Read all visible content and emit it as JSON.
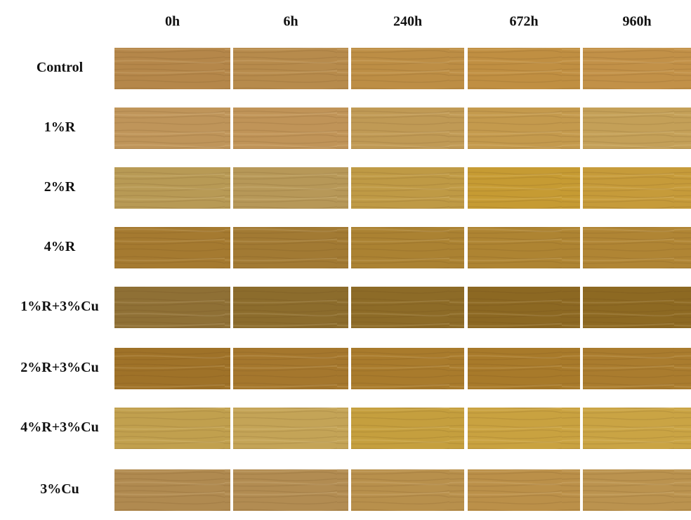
{
  "columns": [
    "0h",
    "6h",
    "240h",
    "672h",
    "960h"
  ],
  "rows": [
    "Control",
    "1%R",
    "2%R",
    "4%R",
    "1%R+3%Cu",
    "2%R+3%Cu",
    "4%R+3%Cu",
    "3%Cu"
  ]
}
